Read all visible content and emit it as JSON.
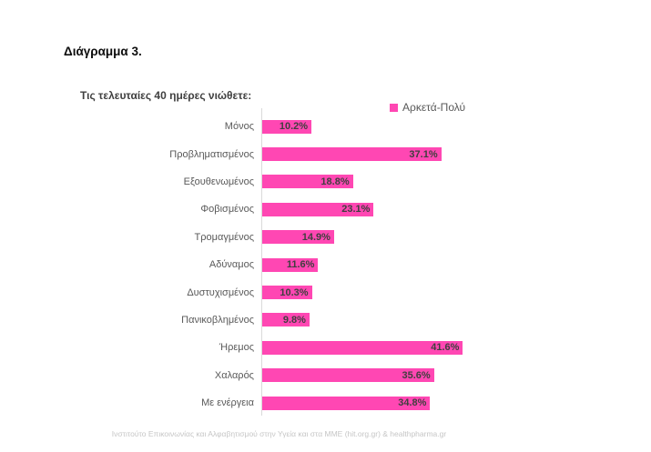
{
  "header": {
    "title": "Διάγραμμα 3."
  },
  "chart_data": {
    "type": "bar",
    "orientation": "horizontal",
    "title": "Τις τελευταίες 40 ημέρες νιώθετε:",
    "legend": {
      "label": "Αρκετά-Πολύ",
      "position": "top-right",
      "color": "#FF47B3"
    },
    "categories": [
      "Μόνος",
      "Προβληματισμένος",
      "Εξουθενωμένος",
      "Φοβισμένος",
      "Τρομαγμένος",
      "Αδύναμος",
      "Δυστυχισμένος",
      "Πανικοβλημένος",
      "Ήρεμος",
      "Χαλαρός",
      "Με ενέργεια"
    ],
    "values": [
      10.2,
      37.1,
      18.8,
      23.1,
      14.9,
      11.6,
      10.3,
      9.8,
      41.6,
      35.6,
      34.8
    ],
    "value_labels": [
      "10.2%",
      "37.1%",
      "18.8%",
      "23.1%",
      "14.9%",
      "11.6%",
      "10.3%",
      "9.8%",
      "41.6%",
      "35.6%",
      "34.8%"
    ],
    "unit": "%",
    "bar_color": "#FF47B3",
    "axis_line_color": "#D9D9D9",
    "xlim": [
      0,
      45
    ],
    "grid": false,
    "value_label_position": "inside-end"
  },
  "footer": {
    "credit": "Ινστιτούτο Επικοινωνίας και Αλφαβητισμού στην Υγεία και στα ΜΜΕ (hit.org.gr) & healthpharma.gr"
  }
}
